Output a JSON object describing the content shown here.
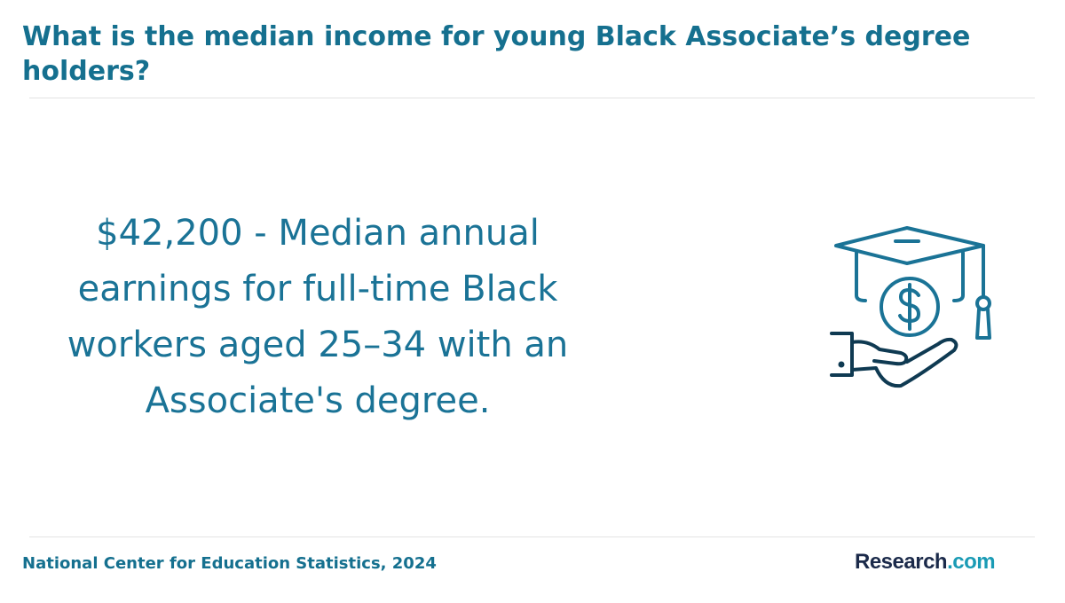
{
  "header": {
    "title": "What is the median income for young Black Associate’s degree holders?"
  },
  "body": {
    "statement": "$42,200 - Median annual earnings for full-time Black workers aged 25–34 with an Associate's degree."
  },
  "footer": {
    "source": "National Center for Education Statistics, 2024",
    "logo": {
      "name": "Research",
      "suffix": ".com"
    }
  }
}
